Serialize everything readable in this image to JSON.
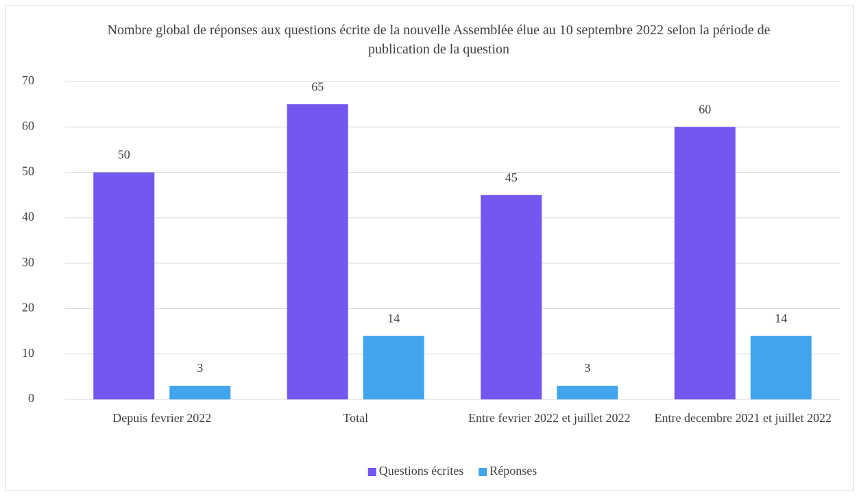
{
  "chart_data": {
    "type": "bar",
    "title": "Nombre global de réponses aux questions écrite de la nouvelle Assemblée élue au 10 septembre 2022 selon la période de publication de la question",
    "categories": [
      "Depuis fevrier 2022",
      "Total",
      "Entre fevrier 2022 et juillet 2022",
      "Entre decembre 2021 et juillet 2022"
    ],
    "series": [
      {
        "name": "Questions écrites",
        "color": "#7456f0",
        "values": [
          50,
          65,
          45,
          60
        ]
      },
      {
        "name": "Réponses",
        "color": "#41a5ee",
        "values": [
          3,
          14,
          3,
          14
        ]
      }
    ],
    "ylim": [
      0,
      70
    ],
    "yticks": [
      0,
      10,
      20,
      30,
      40,
      50,
      60,
      70
    ],
    "grid": true,
    "legend": "bottom"
  }
}
